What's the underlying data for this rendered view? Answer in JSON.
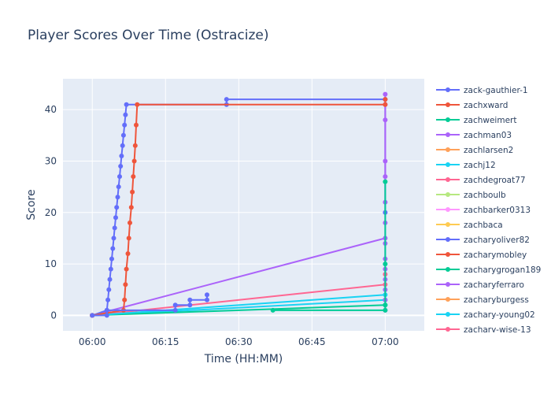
{
  "chart_data": {
    "type": "line",
    "title": "Player Scores Over Time (Ostracize)",
    "xlabel": "Time (HH:MM)",
    "ylabel": "Score",
    "x_unit": "HH:MM",
    "xlim": [
      "05:54",
      "07:08"
    ],
    "ylim": [
      -3,
      46
    ],
    "x_ticks": [
      "06:00",
      "06:15",
      "06:30",
      "06:45",
      "07:00"
    ],
    "y_ticks": [
      0,
      10,
      20,
      30,
      40
    ],
    "grid": true,
    "legend_position": "right",
    "series": [
      {
        "name": "zack-gauthier-1",
        "color": "#636efa",
        "points": [
          [
            "06:00",
            0
          ],
          [
            "06:03",
            0
          ],
          [
            "06:03",
            1
          ],
          [
            "06:17",
            1
          ],
          [
            "06:17",
            2
          ],
          [
            "06:20",
            2
          ],
          [
            "06:20",
            3
          ],
          [
            "06:23.5",
            3
          ],
          [
            "06:23.5",
            4
          ]
        ]
      },
      {
        "name": "zachxward",
        "color": "#ef553b",
        "points": [
          [
            "06:00",
            0
          ],
          [
            "06:06.4",
            1
          ],
          [
            "06:06.6",
            3
          ],
          [
            "06:06.8",
            6
          ],
          [
            "06:07",
            9
          ],
          [
            "06:07.3",
            12
          ],
          [
            "06:07.5",
            15
          ],
          [
            "06:07.7",
            18
          ],
          [
            "06:08",
            21
          ],
          [
            "06:08.2",
            24
          ],
          [
            "06:08.4",
            27
          ],
          [
            "06:08.6",
            30
          ],
          [
            "06:08.8",
            33
          ],
          [
            "06:09",
            37
          ],
          [
            "06:09.2",
            41
          ],
          [
            "07:00",
            41
          ],
          [
            "07:00",
            42
          ]
        ]
      },
      {
        "name": "zachweimert",
        "color": "#00cc96",
        "points": [
          [
            "06:37",
            1
          ],
          [
            "07:00",
            1
          ],
          [
            "07:00",
            2
          ],
          [
            "07:00",
            10
          ],
          [
            "07:00",
            26
          ]
        ]
      },
      {
        "name": "zachman03",
        "color": "#ab63fa",
        "points": [
          [
            "07:00",
            1
          ],
          [
            "07:00",
            3
          ],
          [
            "07:00",
            5
          ],
          [
            "07:00",
            7
          ],
          [
            "07:00",
            9
          ],
          [
            "07:00",
            11
          ],
          [
            "07:00",
            14
          ],
          [
            "07:00",
            18
          ],
          [
            "07:00",
            22
          ],
          [
            "07:00",
            27
          ],
          [
            "07:00",
            30
          ],
          [
            "07:00",
            38
          ],
          [
            "07:00",
            41
          ],
          [
            "07:00",
            43
          ]
        ]
      },
      {
        "name": "zachlarsen2",
        "color": "#ffa15a",
        "points": [
          [
            "06:00",
            0
          ]
        ]
      },
      {
        "name": "zachj12",
        "color": "#19d3f3",
        "points": [
          [
            "06:00",
            0
          ],
          [
            "07:00",
            4
          ]
        ]
      },
      {
        "name": "zachdegroat77",
        "color": "#ff6692",
        "points": [
          [
            "06:00",
            0
          ],
          [
            "07:00",
            6
          ],
          [
            "07:00",
            8
          ]
        ]
      },
      {
        "name": "zachboulb",
        "color": "#b6e880",
        "points": [
          [
            "06:00",
            0
          ]
        ]
      },
      {
        "name": "zachbarker0313",
        "color": "#ff97ff",
        "points": [
          [
            "06:00",
            0
          ]
        ]
      },
      {
        "name": "zachbaca",
        "color": "#fecb52",
        "points": [
          [
            "06:00",
            0
          ]
        ]
      },
      {
        "name": "zacharyoliver82",
        "color": "#636efa",
        "points": [
          [
            "06:00",
            0
          ],
          [
            "06:03",
            1
          ],
          [
            "06:03.2",
            3
          ],
          [
            "06:03.4",
            5
          ],
          [
            "06:03.6",
            7
          ],
          [
            "06:03.8",
            9
          ],
          [
            "06:04",
            11
          ],
          [
            "06:04.2",
            13
          ],
          [
            "06:04.4",
            15
          ],
          [
            "06:04.6",
            17
          ],
          [
            "06:04.8",
            19
          ],
          [
            "06:05",
            21
          ],
          [
            "06:05.2",
            23
          ],
          [
            "06:05.4",
            25
          ],
          [
            "06:05.6",
            27
          ],
          [
            "06:05.8",
            29
          ],
          [
            "06:06",
            31
          ],
          [
            "06:06.2",
            33
          ],
          [
            "06:06.4",
            35
          ],
          [
            "06:06.6",
            37
          ],
          [
            "06:06.8",
            39
          ],
          [
            "06:07",
            41
          ],
          [
            "06:27.5",
            41
          ],
          [
            "06:27.5",
            42
          ],
          [
            "07:00",
            42
          ],
          [
            "07:00",
            20
          ]
        ]
      },
      {
        "name": "zacharymobley",
        "color": "#ef553b",
        "points": [
          [
            "06:00",
            0
          ]
        ]
      },
      {
        "name": "zacharygrogan189",
        "color": "#00cc96",
        "points": [
          [
            "06:00",
            0
          ],
          [
            "07:00",
            2
          ]
        ]
      },
      {
        "name": "zacharyferraro",
        "color": "#ab63fa",
        "points": [
          [
            "06:00",
            0
          ],
          [
            "07:00",
            15
          ]
        ]
      },
      {
        "name": "zacharyburgess",
        "color": "#ffa15a",
        "points": [
          [
            "06:00",
            0
          ]
        ]
      },
      {
        "name": "zachary-young02",
        "color": "#19d3f3",
        "points": [
          [
            "06:00",
            0
          ],
          [
            "07:00",
            3
          ]
        ]
      },
      {
        "name": "zachary-wise-13",
        "color": "#ff6692",
        "points": [
          [
            "06:00",
            0
          ]
        ]
      }
    ]
  }
}
